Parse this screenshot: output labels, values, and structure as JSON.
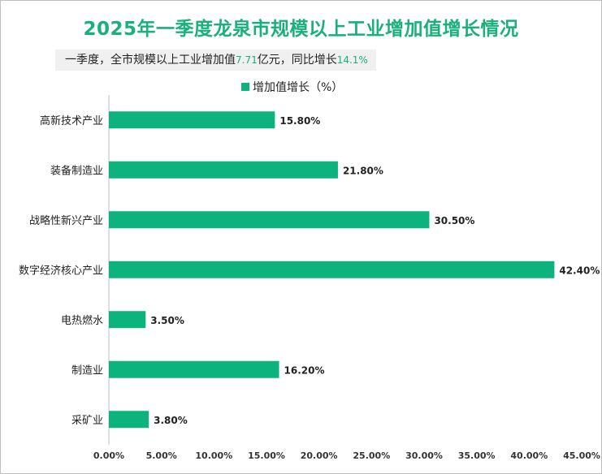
{
  "title": "2025年一季度龙泉市规模以上工业增加值增长情况",
  "subtitle": {
    "prefix": "一季度，全市规模以上工业增加值",
    "value": "7.71",
    "middle": "亿元，同比增长",
    "growth": "14.1%"
  },
  "colors": {
    "bar": "#0db37c",
    "title": "#19b07a",
    "axis": "#bfbfbf"
  },
  "chart_data": {
    "type": "bar",
    "orientation": "horizontal",
    "categories": [
      "高新技术产业",
      "装备制造业",
      "战略性新兴产业",
      "数字经济核心产业",
      "电热燃水",
      "制造业",
      "采矿业"
    ],
    "series": [
      {
        "name": "增加值增长（%）",
        "values": [
          15.8,
          21.8,
          30.5,
          42.4,
          3.5,
          16.2,
          3.8
        ]
      }
    ],
    "data_labels": [
      "15.80%",
      "21.80%",
      "30.50%",
      "42.40%",
      "3.50%",
      "16.20%",
      "3.80%"
    ],
    "x_ticks": [
      "0.00%",
      "5.00%",
      "10.00%",
      "15.00%",
      "20.00%",
      "25.00%",
      "30.00%",
      "35.00%",
      "40.00%",
      "45.00%"
    ],
    "xlim": [
      0,
      45
    ],
    "grid": false,
    "legend_position": "top"
  }
}
